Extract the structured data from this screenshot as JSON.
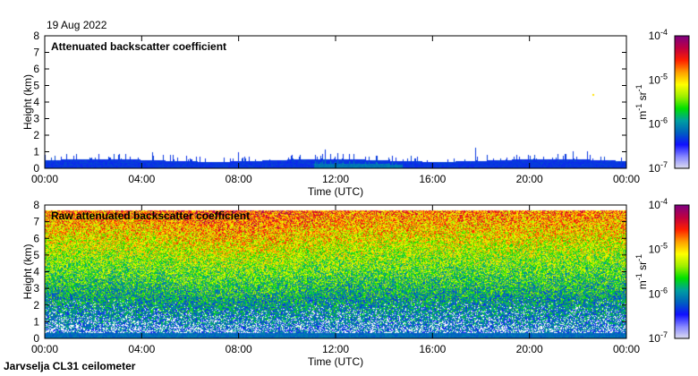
{
  "date": "19 Aug 2022",
  "footer": "Jarvselja CL31 ceilometer",
  "chart_data": [
    {
      "type": "heatmap",
      "title": "Attenuated backscatter coefficient",
      "xlabel": "Time (UTC)",
      "ylabel": "Height (km)",
      "xticks": [
        "00:00",
        "04:00",
        "08:00",
        "12:00",
        "16:00",
        "20:00",
        "00:00"
      ],
      "yticks": [
        "0",
        "1",
        "2",
        "3",
        "4",
        "5",
        "6",
        "7",
        "8"
      ],
      "ylim": [
        0,
        8
      ],
      "colorbar": {
        "label_base": "m",
        "label_exp1": "-1",
        "label_mid": " sr",
        "label_exp2": "-1",
        "ticks": [
          "-7",
          "-6",
          "-5",
          "-4"
        ],
        "tick_base": "10",
        "range": [
          1e-07,
          0.0001
        ],
        "scale": "log"
      },
      "description_layer": {
        "max_height_km": 0.5,
        "spikes_to_km": 1.2
      }
    },
    {
      "type": "heatmap",
      "title": "Raw attenuated backscatter coefficient",
      "xlabel": "Time (UTC)",
      "ylabel": "Height (km)",
      "xticks": [
        "00:00",
        "04:00",
        "08:00",
        "12:00",
        "16:00",
        "20:00",
        "00:00"
      ],
      "yticks": [
        "0",
        "1",
        "2",
        "3",
        "4",
        "5",
        "6",
        "7",
        "8"
      ],
      "ylim": [
        0,
        8
      ],
      "colorbar": {
        "label_base": "m",
        "label_exp1": "-1",
        "label_mid": " sr",
        "label_exp2": "-1",
        "ticks": [
          "-7",
          "-6",
          "-5",
          "-4"
        ],
        "tick_base": "10",
        "range": [
          1e-07,
          0.0001
        ],
        "scale": "log"
      },
      "data_top_km": 7.7
    }
  ],
  "colormap": [
    "#e0e0ee",
    "#8888ff",
    "#1010ff",
    "#0060c0",
    "#00a0a0",
    "#00e000",
    "#a0f000",
    "#ffff00",
    "#ffa000",
    "#ff2000",
    "#c00040",
    "#800080"
  ]
}
